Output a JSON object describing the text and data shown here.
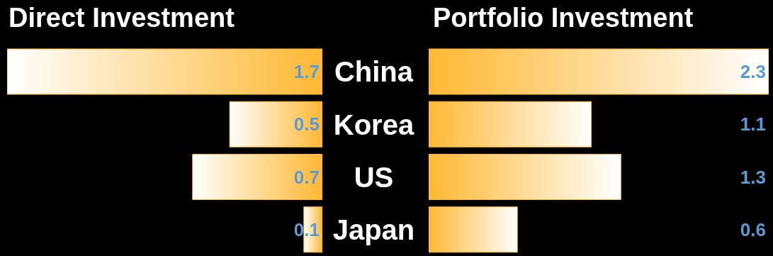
{
  "chart_data": [
    {
      "type": "bar",
      "orientation": "horizontal",
      "title": "Direct Investment",
      "categories": [
        "China",
        "Korea",
        "US",
        "Japan"
      ],
      "values": [
        1.7,
        0.5,
        0.7,
        0.1
      ],
      "color": "#ffb833",
      "xlim": [
        1.7,
        0
      ],
      "data_labels": true,
      "tick_labels": "y"
    },
    {
      "type": "bar",
      "orientation": "horizontal",
      "title": "Portfolio Investment",
      "categories": [
        null,
        null,
        null,
        null
      ],
      "values": [
        2.3,
        1.1,
        1.3,
        0.6
      ],
      "color": "#ffb833",
      "xlim": [
        0,
        2.3
      ],
      "data_labels": true,
      "tick_labels": false
    }
  ]
}
